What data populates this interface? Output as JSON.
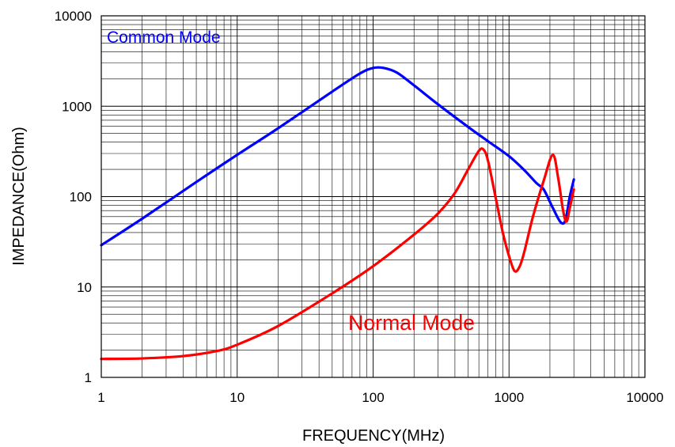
{
  "chart_data": {
    "type": "line",
    "title": "",
    "xlabel": "FREQUENCY(MHz)",
    "ylabel": "IMPEDANCE(Ohm)",
    "x_scale": "log",
    "y_scale": "log",
    "xlim": [
      1,
      10000
    ],
    "ylim": [
      1,
      10000
    ],
    "grid": true,
    "x_ticks": [
      1,
      10,
      100,
      1000,
      10000
    ],
    "x_tick_labels": [
      "1",
      "10",
      "100",
      "1000",
      "10000"
    ],
    "y_ticks": [
      1,
      10,
      100,
      1000,
      10000
    ],
    "y_tick_labels": [
      "1",
      "10",
      "100",
      "1000",
      "10000"
    ],
    "series": [
      {
        "name": "Common Mode",
        "color": "#0000ff",
        "x": [
          1,
          2,
          5,
          10,
          20,
          50,
          80,
          100,
          120,
          150,
          200,
          300,
          500,
          700,
          1000,
          1300,
          1600,
          1800,
          2100,
          2400,
          2600,
          2800,
          3000
        ],
        "y": [
          29,
          57,
          145,
          290,
          570,
          1450,
          2300,
          2650,
          2650,
          2350,
          1700,
          1050,
          590,
          410,
          280,
          195,
          140,
          120,
          75,
          52,
          55,
          100,
          155
        ]
      },
      {
        "name": "Normal Mode",
        "color": "#ff0000",
        "x": [
          1,
          2,
          4,
          7,
          10,
          20,
          50,
          100,
          200,
          300,
          400,
          500,
          600,
          650,
          700,
          800,
          900,
          1000,
          1100,
          1200,
          1300,
          1500,
          1800,
          2100,
          2300,
          2500,
          2650,
          2800,
          3000
        ],
        "y": [
          1.6,
          1.62,
          1.72,
          1.95,
          2.3,
          3.7,
          8.5,
          17,
          38,
          65,
          110,
          200,
          320,
          330,
          250,
          95,
          40,
          22,
          15,
          17,
          25,
          60,
          150,
          290,
          160,
          70,
          53,
          75,
          120
        ]
      }
    ],
    "annotations": [
      {
        "text": "Common Mode",
        "color": "#0000ff"
      },
      {
        "text": "Normal Mode",
        "color": "#ff0000"
      }
    ]
  }
}
